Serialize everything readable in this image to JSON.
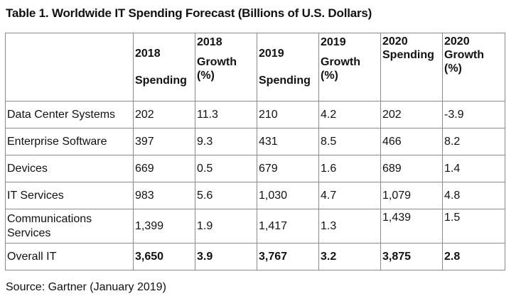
{
  "title": "Table 1. Worldwide IT Spending Forecast (Billions of U.S. Dollars)",
  "columns": [
    {
      "line1": "2018",
      "line2": "Spending"
    },
    {
      "line1": "2018",
      "line2": "Growth (%)"
    },
    {
      "line1": "2019",
      "line2": "Spending"
    },
    {
      "line1": "2019",
      "line2": "Growth (%)"
    },
    {
      "line1": "2020",
      "line2": "Spending"
    },
    {
      "line1": "2020",
      "line2": "Growth (%)"
    }
  ],
  "rows": [
    {
      "label": "Data Center Systems",
      "values": [
        "202",
        "11.3",
        "210",
        "4.2",
        "202",
        "-3.9"
      ]
    },
    {
      "label": "Enterprise Software",
      "values": [
        "397",
        "9.3",
        "431",
        "8.5",
        "466",
        "8.2"
      ]
    },
    {
      "label": "Devices",
      "values": [
        "669",
        "0.5",
        "679",
        "1.6",
        "689",
        "1.4"
      ]
    },
    {
      "label": "IT Services",
      "values": [
        "983",
        "5.6",
        "1,030",
        "4.7",
        "1,079",
        "4.8"
      ]
    },
    {
      "label": "Communications Services",
      "values": [
        "1,399",
        "1.9",
        "1,417",
        "1.3",
        "1,439",
        "1.5"
      ]
    },
    {
      "label": "Overall IT",
      "values": [
        "3,650",
        "3.9",
        "3,767",
        "3.2",
        "3,875",
        "2.8"
      ]
    }
  ],
  "source": "Source: Gartner (January 2019)"
}
